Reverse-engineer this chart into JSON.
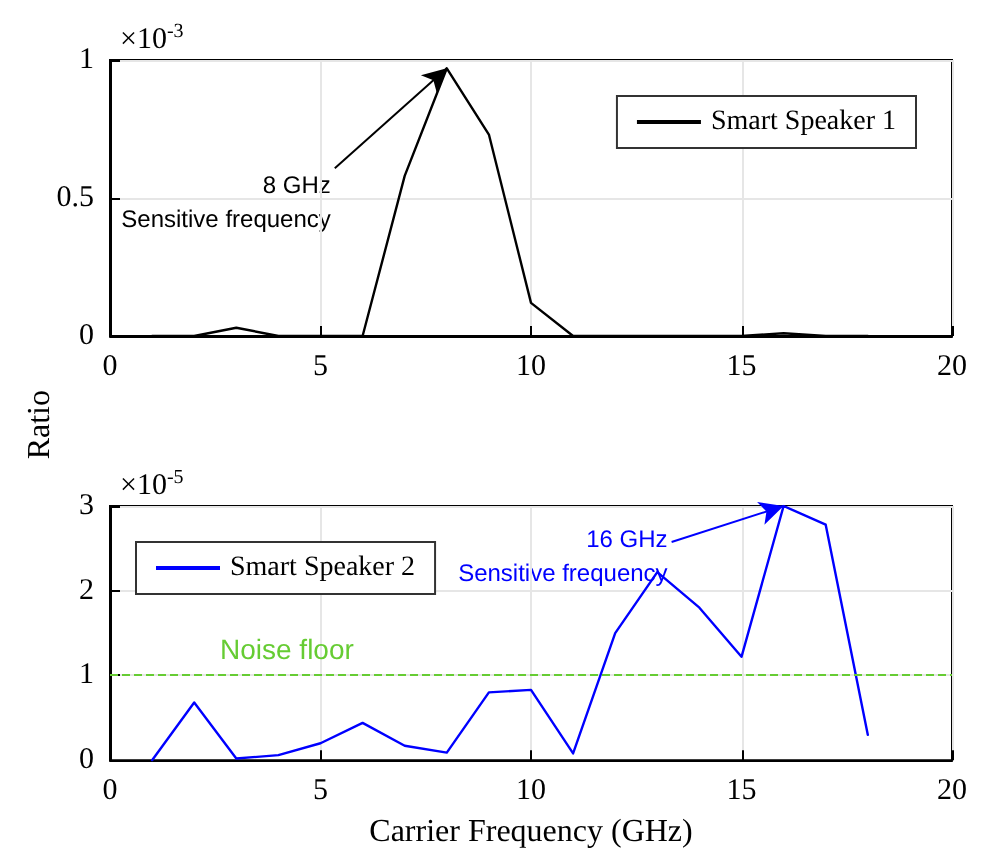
{
  "chart_data": [
    {
      "type": "line",
      "ylabel": "Ratio",
      "x": [
        1,
        2,
        3,
        4,
        5,
        6,
        7,
        8,
        9,
        10,
        11,
        12,
        13,
        14,
        15,
        16,
        17,
        18
      ],
      "series": [
        {
          "name": "Smart Speaker 1",
          "color": "#000000",
          "values": [
            0,
            0,
            0.03,
            0,
            0,
            0,
            0.58,
            0.97,
            0.73,
            0.12,
            0,
            0,
            0,
            0,
            0,
            0.01,
            0,
            0
          ]
        }
      ],
      "xlim": [
        0,
        20
      ],
      "xticks": [
        0,
        5,
        10,
        15,
        20
      ],
      "ylim": [
        0,
        1
      ],
      "yticks": [
        0,
        0.5,
        1
      ],
      "grid": true,
      "legend": "top right",
      "marker": "none",
      "line_style": "solid",
      "annotations": [
        "×10$^{-3}$",
        {
          "text": "8 GHz\nSensitive frequency",
          "x": 8,
          "y": 0.97
        }
      ]
    },
    {
      "type": "line",
      "xlabel": "Carrier Frequency (GHz)",
      "x": [
        1,
        2,
        3,
        4,
        5,
        6,
        7,
        8,
        9,
        10,
        11,
        12,
        13,
        14,
        15,
        16,
        17,
        18
      ],
      "series": [
        {
          "name": "Smart Speaker 2",
          "color": "#0000ff",
          "values": [
            0,
            0.68,
            0.02,
            0.06,
            0.2,
            0.44,
            0.17,
            0.09,
            0.8,
            0.83,
            0.08,
            1.5,
            2.22,
            1.8,
            1.22,
            3,
            2.78,
            0.3
          ]
        }
      ],
      "xlim": [
        0,
        20
      ],
      "xticks": [
        0,
        5,
        10,
        15,
        20
      ],
      "ylim": [
        0,
        3
      ],
      "yticks": [
        0,
        1,
        2,
        3
      ],
      "grid": true,
      "legend": "top left",
      "marker": "none",
      "line_style": "solid",
      "ref_lines": [
        {
          "axis": "y",
          "value": 1,
          "label": "Noise floor",
          "color": "#66cc33",
          "line_style": "dashed"
        }
      ],
      "annotations": [
        "×10$^{-5}$",
        {
          "text": "16 GHz\nSensitive frequency",
          "x": 16,
          "y": 3
        }
      ]
    }
  ]
}
